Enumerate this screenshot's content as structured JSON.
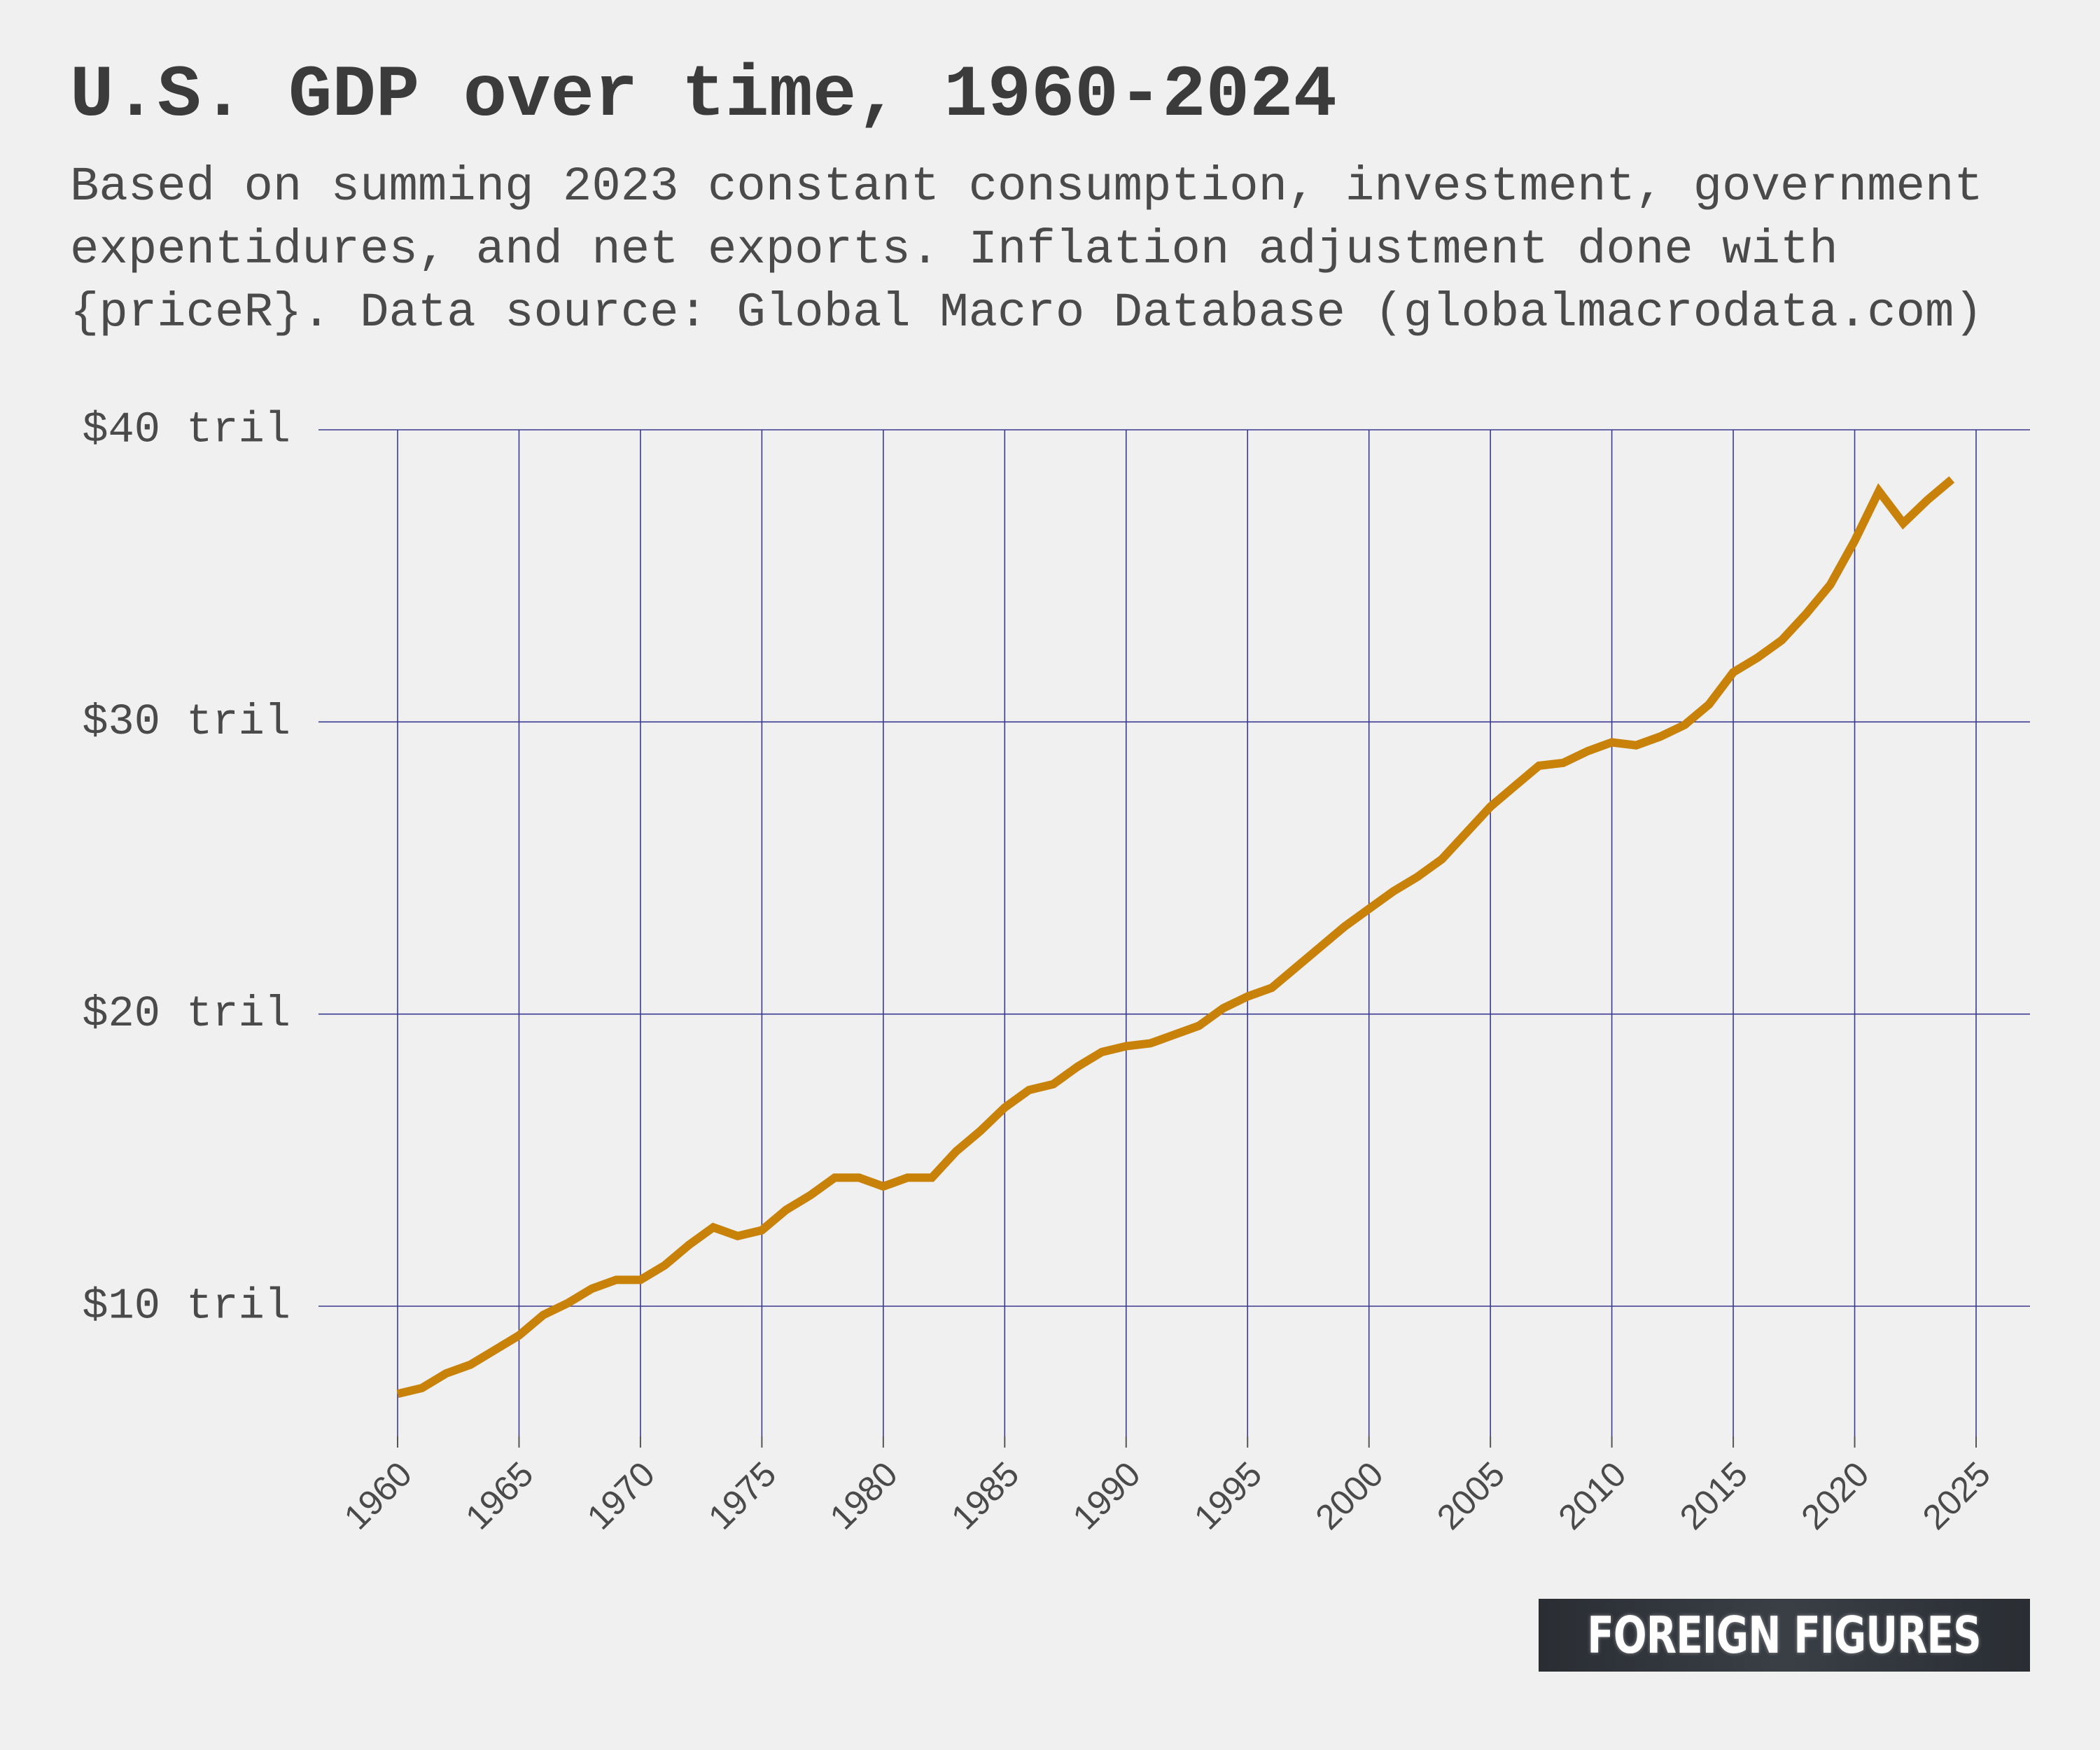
{
  "title": "U.S. GDP over time, 1960-2024",
  "subtitle": "Based on summing 2023 constant consumption, investment, government expentidures, and net exports. Inflation adjustment done with {priceR}. Data source: Global Macro Database (globalmacrodata.com)",
  "logo": {
    "text": "FOREIGN FIGURES"
  },
  "colors": {
    "line": "#c8820a",
    "grid": "#3a3a90",
    "background": "#f0f0f0",
    "text": "#3b3b3b"
  },
  "chart_data": {
    "type": "line",
    "title": "U.S. GDP over time, 1960-2024",
    "xlabel": "",
    "ylabel": "",
    "xlim": [
      1960,
      2025
    ],
    "ylim": [
      5.5,
      40
    ],
    "grid": true,
    "x_ticks": [
      1960,
      1965,
      1970,
      1975,
      1980,
      1985,
      1990,
      1995,
      2000,
      2005,
      2010,
      2015,
      2020,
      2025
    ],
    "x_tick_labels": [
      "1960",
      "1965",
      "1970",
      "1975",
      "1980",
      "1985",
      "1990",
      "1995",
      "2000",
      "2005",
      "2010",
      "2015",
      "2020",
      "2025"
    ],
    "y_ticks": [
      10,
      20,
      30,
      40
    ],
    "y_tick_labels": [
      "$10 tril",
      "$20 tril",
      "$30 tril",
      "$40 tril"
    ],
    "series": [
      {
        "x": [
          1960,
          1961,
          1962,
          1963,
          1964,
          1965,
          1966,
          1967,
          1968,
          1969,
          1970,
          1971,
          1972,
          1973,
          1974,
          1975,
          1976,
          1977,
          1978,
          1979,
          1980,
          1981,
          1982,
          1983,
          1984,
          1985,
          1986,
          1987,
          1988,
          1989,
          1990,
          1991,
          1992,
          1993,
          1994,
          1995,
          1996,
          1997,
          1998,
          1999,
          2000,
          2001,
          2002,
          2003,
          2004,
          2005,
          2006,
          2007,
          2008,
          2009,
          2010,
          2011,
          2012,
          2013,
          2014,
          2015,
          2016,
          2017,
          2018,
          2019,
          2020,
          2021,
          2022,
          2023,
          2024
        ],
        "values": [
          7.0,
          7.2,
          7.7,
          8.0,
          8.5,
          9.0,
          9.7,
          10.1,
          10.6,
          10.9,
          10.9,
          11.4,
          12.1,
          12.7,
          12.4,
          12.6,
          13.3,
          13.8,
          14.4,
          14.4,
          14.1,
          14.4,
          14.4,
          15.3,
          16.0,
          16.8,
          17.4,
          17.6,
          18.2,
          18.7,
          18.9,
          19.0,
          19.3,
          19.6,
          20.2,
          20.6,
          20.9,
          21.6,
          22.3,
          23.0,
          23.6,
          24.2,
          24.7,
          25.3,
          26.2,
          27.1,
          27.8,
          28.5,
          28.6,
          29.0,
          29.3,
          29.2,
          29.5,
          29.9,
          30.6,
          31.7,
          32.2,
          32.8,
          33.7,
          34.7,
          36.2,
          37.9,
          36.8,
          37.6,
          38.3
        ]
      }
    ]
  }
}
